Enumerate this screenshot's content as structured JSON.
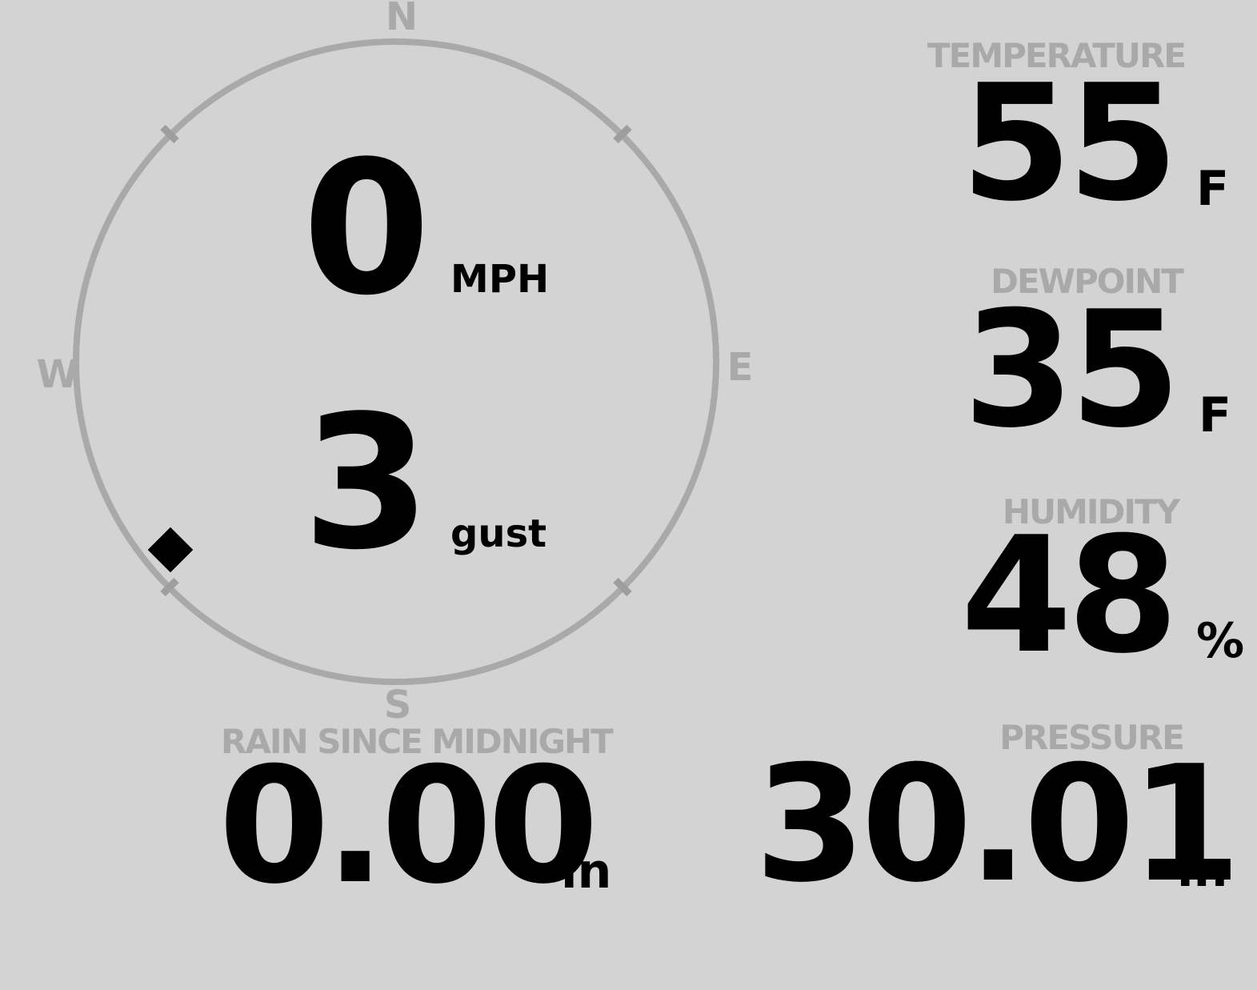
{
  "colors": {
    "background": "#d3d3d3",
    "muted_gray": "#a9a9a9",
    "value_black": "#000000"
  },
  "wind": {
    "speed_value": "0",
    "speed_unit": "MPH",
    "gust_value": "3",
    "gust_unit": "gust",
    "direction_deg": 230,
    "compass_labels": {
      "north": "N",
      "east": "E",
      "south": "S",
      "west": "W"
    }
  },
  "metrics": {
    "temperature": {
      "label": "TEMPERATURE",
      "value": "55",
      "unit": "F"
    },
    "dewpoint": {
      "label": "DEWPOINT",
      "value": "35",
      "unit": "F"
    },
    "humidity": {
      "label": "HUMIDITY",
      "value": "48",
      "unit": "%"
    },
    "rain_since_midnight": {
      "label": "RAIN SINCE MIDNIGHT",
      "value": "0.00",
      "unit": "in"
    },
    "pressure": {
      "label": "PRESSURE",
      "value": "30.01",
      "unit": "in"
    }
  }
}
